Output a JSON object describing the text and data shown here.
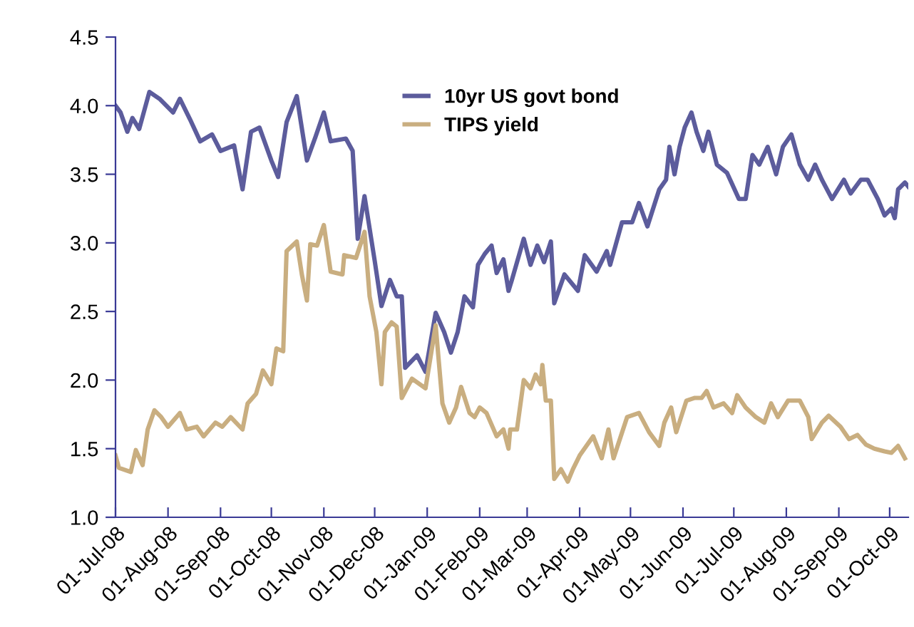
{
  "chart_data": {
    "type": "line",
    "legend": "top",
    "grid": false,
    "line_style": "solid",
    "marker": "none",
    "xlim": [
      "2008-07-01",
      "2009-10-12"
    ],
    "xticks": [
      {
        "value": "2008-07-01",
        "label": "01-Jul-08"
      },
      {
        "value": "2008-08-01",
        "label": "01-Aug-08"
      },
      {
        "value": "2008-09-01",
        "label": "01-Sep-08"
      },
      {
        "value": "2008-10-01",
        "label": "01-Oct-08"
      },
      {
        "value": "2008-11-01",
        "label": "01-Nov-08"
      },
      {
        "value": "2008-12-01",
        "label": "01-Dec-08"
      },
      {
        "value": "2009-01-01",
        "label": "01-Jan-09"
      },
      {
        "value": "2009-02-01",
        "label": "01-Feb-09"
      },
      {
        "value": "2009-03-01",
        "label": "01-Mar-09"
      },
      {
        "value": "2009-04-01",
        "label": "01-Apr-09"
      },
      {
        "value": "2009-05-01",
        "label": "01-May-09"
      },
      {
        "value": "2009-06-01",
        "label": "01-Jun-09"
      },
      {
        "value": "2009-07-01",
        "label": "01-Jul-09"
      },
      {
        "value": "2009-08-01",
        "label": "01-Aug-09"
      },
      {
        "value": "2009-09-01",
        "label": "01-Sep-09"
      },
      {
        "value": "2009-10-01",
        "label": "01-Oct-09"
      }
    ],
    "ylim": [
      1.0,
      4.5
    ],
    "yticks": [
      {
        "value": 1,
        "label": "1.0"
      },
      {
        "value": 1.5,
        "label": "1.5"
      },
      {
        "value": 2,
        "label": "2.0"
      },
      {
        "value": 2.5,
        "label": "2.5"
      },
      {
        "value": 3,
        "label": "3.0"
      },
      {
        "value": 3.5,
        "label": "3.5"
      },
      {
        "value": 4,
        "label": "4.0"
      },
      {
        "value": 4.5,
        "label": "4.5"
      }
    ],
    "series": [
      {
        "name": "10yr US govt bond",
        "color": "#5c5c9c",
        "x": [
          "2008-07-01",
          "2008-07-04",
          "2008-07-08",
          "2008-07-11",
          "2008-07-15",
          "2008-07-21",
          "2008-07-27",
          "2008-08-04",
          "2008-08-08",
          "2008-08-14",
          "2008-08-20",
          "2008-08-27",
          "2008-09-01",
          "2008-09-09",
          "2008-09-14",
          "2008-09-19",
          "2008-09-24",
          "2008-10-01",
          "2008-10-05",
          "2008-10-10",
          "2008-10-16",
          "2008-10-22",
          "2008-10-27",
          "2008-11-01",
          "2008-11-05",
          "2008-11-14",
          "2008-11-18",
          "2008-11-21",
          "2008-11-25",
          "2008-12-01",
          "2008-12-05",
          "2008-12-10",
          "2008-12-14",
          "2008-12-17",
          "2008-12-19",
          "2008-12-26",
          "2008-12-31",
          "2009-01-06",
          "2009-01-11",
          "2009-01-15",
          "2009-01-19",
          "2009-01-23",
          "2009-01-28",
          "2009-01-31",
          "2009-02-04",
          "2009-02-08",
          "2009-02-11",
          "2009-02-15",
          "2009-02-18",
          "2009-02-20",
          "2009-02-27",
          "2009-03-03",
          "2009-03-07",
          "2009-03-11",
          "2009-03-15",
          "2009-03-17",
          "2009-03-23",
          "2009-03-31",
          "2009-04-04",
          "2009-04-11",
          "2009-04-17",
          "2009-04-19",
          "2009-04-26",
          "2009-05-02",
          "2009-05-06",
          "2009-05-11",
          "2009-05-18",
          "2009-05-22",
          "2009-05-24",
          "2009-05-27",
          "2009-05-30",
          "2009-06-02",
          "2009-06-06",
          "2009-06-09",
          "2009-06-13",
          "2009-06-16",
          "2009-06-21",
          "2009-06-27",
          "2009-07-04",
          "2009-07-08",
          "2009-07-12",
          "2009-07-16",
          "2009-07-21",
          "2009-07-26",
          "2009-07-30",
          "2009-08-04",
          "2009-08-09",
          "2009-08-14",
          "2009-08-18",
          "2009-08-22",
          "2009-08-28",
          "2009-09-04",
          "2009-09-08",
          "2009-09-14",
          "2009-09-18",
          "2009-09-24",
          "2009-09-28",
          "2009-10-02",
          "2009-10-04",
          "2009-10-06",
          "2009-10-10",
          "2009-10-12"
        ],
        "values": [
          4.0,
          3.95,
          3.81,
          3.91,
          3.83,
          4.1,
          4.05,
          3.95,
          4.05,
          3.9,
          3.74,
          3.79,
          3.67,
          3.71,
          3.39,
          3.81,
          3.84,
          3.6,
          3.48,
          3.88,
          4.07,
          3.6,
          3.77,
          3.95,
          3.74,
          3.76,
          3.67,
          3.03,
          3.34,
          2.87,
          2.54,
          2.73,
          2.61,
          2.61,
          2.09,
          2.18,
          2.06,
          2.49,
          2.35,
          2.2,
          2.35,
          2.61,
          2.53,
          2.84,
          2.92,
          2.98,
          2.78,
          2.88,
          2.65,
          2.73,
          3.03,
          2.84,
          2.98,
          2.86,
          3.01,
          2.56,
          2.77,
          2.65,
          2.91,
          2.79,
          2.94,
          2.84,
          3.15,
          3.15,
          3.29,
          3.12,
          3.39,
          3.46,
          3.7,
          3.5,
          3.7,
          3.84,
          3.95,
          3.81,
          3.67,
          3.81,
          3.57,
          3.51,
          3.32,
          3.32,
          3.64,
          3.57,
          3.7,
          3.5,
          3.7,
          3.79,
          3.57,
          3.46,
          3.57,
          3.46,
          3.32,
          3.46,
          3.36,
          3.46,
          3.46,
          3.32,
          3.2,
          3.25,
          3.18,
          3.39,
          3.44,
          3.41
        ]
      },
      {
        "name": "TIPS yield",
        "color": "#c9ae80",
        "x": [
          "2008-07-01",
          "2008-07-03",
          "2008-07-10",
          "2008-07-13",
          "2008-07-17",
          "2008-07-20",
          "2008-07-24",
          "2008-07-28",
          "2008-08-01",
          "2008-08-08",
          "2008-08-12",
          "2008-08-18",
          "2008-08-22",
          "2008-08-29",
          "2008-09-02",
          "2008-09-07",
          "2008-09-14",
          "2008-09-17",
          "2008-09-22",
          "2008-09-26",
          "2008-10-01",
          "2008-10-04",
          "2008-10-08",
          "2008-10-10",
          "2008-10-16",
          "2008-10-19",
          "2008-10-22",
          "2008-10-24",
          "2008-10-28",
          "2008-11-01",
          "2008-11-05",
          "2008-11-12",
          "2008-11-13",
          "2008-11-20",
          "2008-11-25",
          "2008-11-28",
          "2008-12-02",
          "2008-12-05",
          "2008-12-07",
          "2008-12-11",
          "2008-12-14",
          "2008-12-17",
          "2008-12-23",
          "2008-12-31",
          "2009-01-06",
          "2009-01-10",
          "2009-01-14",
          "2009-01-18",
          "2009-01-21",
          "2009-01-26",
          "2009-01-29",
          "2009-02-01",
          "2009-02-05",
          "2009-02-11",
          "2009-02-15",
          "2009-02-18",
          "2009-02-19",
          "2009-02-23",
          "2009-02-27",
          "2009-03-03",
          "2009-03-06",
          "2009-03-09",
          "2009-03-10",
          "2009-03-12",
          "2009-03-15",
          "2009-03-17",
          "2009-03-21",
          "2009-03-25",
          "2009-03-28",
          "2009-04-01",
          "2009-04-05",
          "2009-04-09",
          "2009-04-14",
          "2009-04-18",
          "2009-04-21",
          "2009-04-29",
          "2009-05-06",
          "2009-05-12",
          "2009-05-18",
          "2009-05-21",
          "2009-05-25",
          "2009-05-28",
          "2009-06-03",
          "2009-06-08",
          "2009-06-12",
          "2009-06-15",
          "2009-06-19",
          "2009-06-25",
          "2009-06-30",
          "2009-07-03",
          "2009-07-08",
          "2009-07-14",
          "2009-07-19",
          "2009-07-23",
          "2009-07-27",
          "2009-08-02",
          "2009-08-09",
          "2009-08-14",
          "2009-08-16",
          "2009-08-22",
          "2009-08-26",
          "2009-09-02",
          "2009-09-07",
          "2009-09-12",
          "2009-09-17",
          "2009-09-22",
          "2009-09-28",
          "2009-10-02",
          "2009-10-06",
          "2009-10-10"
        ],
        "values": [
          1.45,
          1.36,
          1.33,
          1.49,
          1.38,
          1.64,
          1.78,
          1.73,
          1.66,
          1.76,
          1.64,
          1.66,
          1.59,
          1.69,
          1.66,
          1.73,
          1.64,
          1.83,
          1.9,
          2.07,
          1.97,
          2.23,
          2.21,
          2.94,
          3.01,
          2.77,
          2.58,
          2.99,
          2.98,
          3.13,
          2.79,
          2.77,
          2.91,
          2.89,
          3.08,
          2.61,
          2.35,
          1.97,
          2.35,
          2.42,
          2.39,
          1.87,
          2.01,
          1.94,
          2.4,
          1.83,
          1.69,
          1.8,
          1.95,
          1.76,
          1.73,
          1.8,
          1.76,
          1.59,
          1.64,
          1.5,
          1.64,
          1.64,
          2.0,
          1.94,
          2.04,
          1.97,
          2.11,
          1.85,
          1.85,
          1.28,
          1.35,
          1.26,
          1.35,
          1.45,
          1.52,
          1.59,
          1.43,
          1.64,
          1.43,
          1.73,
          1.76,
          1.62,
          1.52,
          1.69,
          1.8,
          1.62,
          1.85,
          1.87,
          1.87,
          1.92,
          1.8,
          1.83,
          1.76,
          1.89,
          1.8,
          1.73,
          1.69,
          1.83,
          1.73,
          1.85,
          1.85,
          1.73,
          1.57,
          1.69,
          1.74,
          1.66,
          1.57,
          1.6,
          1.53,
          1.5,
          1.48,
          1.47,
          1.52,
          1.43
        ]
      }
    ]
  }
}
